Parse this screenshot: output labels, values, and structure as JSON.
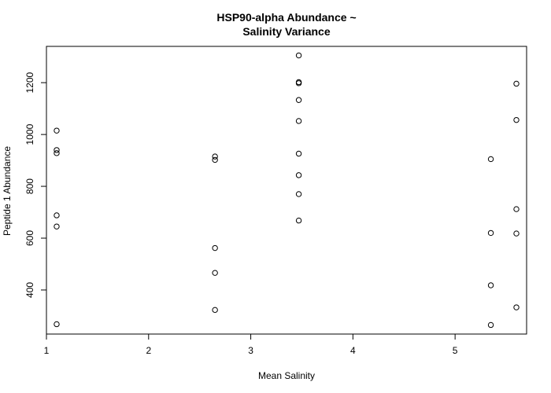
{
  "chart_data": {
    "type": "scatter",
    "title_lines": [
      "HSP90-alpha Abundance ~",
      "Salinity Variance"
    ],
    "xlabel": "Mean Salinity",
    "ylabel": "Peptide 1 Abundance",
    "xlim": [
      1.0,
      5.7
    ],
    "ylim": [
      230,
      1340
    ],
    "x_ticks": [
      1,
      2,
      3,
      4,
      5
    ],
    "y_ticks": [
      400,
      600,
      800,
      1000,
      1200
    ],
    "grid": false,
    "legend": "none",
    "marker": "open-circle",
    "points": [
      {
        "x": 1.1,
        "y": 1015
      },
      {
        "x": 1.1,
        "y": 940
      },
      {
        "x": 1.1,
        "y": 928
      },
      {
        "x": 1.1,
        "y": 688
      },
      {
        "x": 1.1,
        "y": 645
      },
      {
        "x": 1.1,
        "y": 268
      },
      {
        "x": 2.65,
        "y": 915
      },
      {
        "x": 2.65,
        "y": 902
      },
      {
        "x": 2.65,
        "y": 562
      },
      {
        "x": 2.65,
        "y": 466
      },
      {
        "x": 2.65,
        "y": 323
      },
      {
        "x": 3.47,
        "y": 1305
      },
      {
        "x": 3.47,
        "y": 1202
      },
      {
        "x": 3.47,
        "y": 1198
      },
      {
        "x": 3.47,
        "y": 1133
      },
      {
        "x": 3.47,
        "y": 1052
      },
      {
        "x": 3.47,
        "y": 926
      },
      {
        "x": 3.47,
        "y": 843
      },
      {
        "x": 3.47,
        "y": 770
      },
      {
        "x": 3.47,
        "y": 668
      },
      {
        "x": 5.35,
        "y": 905
      },
      {
        "x": 5.35,
        "y": 620
      },
      {
        "x": 5.35,
        "y": 418
      },
      {
        "x": 5.35,
        "y": 265
      },
      {
        "x": 5.6,
        "y": 1196
      },
      {
        "x": 5.6,
        "y": 1056
      },
      {
        "x": 5.6,
        "y": 712
      },
      {
        "x": 5.6,
        "y": 618
      },
      {
        "x": 5.6,
        "y": 333
      }
    ]
  }
}
